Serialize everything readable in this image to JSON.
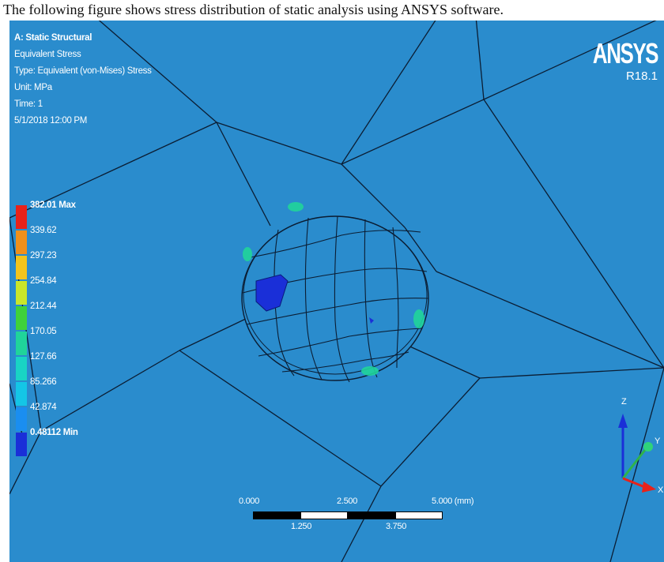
{
  "caption": "The following figure shows stress distribution of static analysis using ANSYS software.",
  "result_info": {
    "analysis": "A: Static Structural",
    "result_name": "Equivalent Stress",
    "type": "Type: Equivalent (von-Mises) Stress",
    "unit": "Unit: MPa",
    "time": "Time: 1",
    "date": "5/1/2018 12:00 PM"
  },
  "legend": {
    "entries": [
      {
        "label": "382.01 Max",
        "color": "#e8221a"
      },
      {
        "label": "339.62",
        "color": "#f0901a"
      },
      {
        "label": "297.23",
        "color": "#f2c41c"
      },
      {
        "label": "254.84",
        "color": "#c9e62a"
      },
      {
        "label": "212.44",
        "color": "#3fd13a"
      },
      {
        "label": "170.05",
        "color": "#20d49a"
      },
      {
        "label": "127.66",
        "color": "#19d4c4"
      },
      {
        "label": "85.266",
        "color": "#14c6e6"
      },
      {
        "label": "42.874",
        "color": "#1a8ef0"
      },
      {
        "label": "0.48112 Min",
        "color": "#1a2fd8"
      }
    ]
  },
  "brand": {
    "name": "ANSYS",
    "version": "R18.1"
  },
  "scale_bar": {
    "top_ticks": [
      "0.000",
      "2.500",
      "5.000 (mm)"
    ],
    "bottom_ticks": [
      "1.250",
      "3.750"
    ]
  },
  "triad": {
    "z_label": "Z",
    "y_label": "Y",
    "x_label": "X"
  },
  "colors": {
    "background": "#2a8ccd",
    "mesh_lines": "#0b1d33",
    "hotspot_low": "#1a2fd8",
    "hotspot_mid": "#20d49a"
  }
}
